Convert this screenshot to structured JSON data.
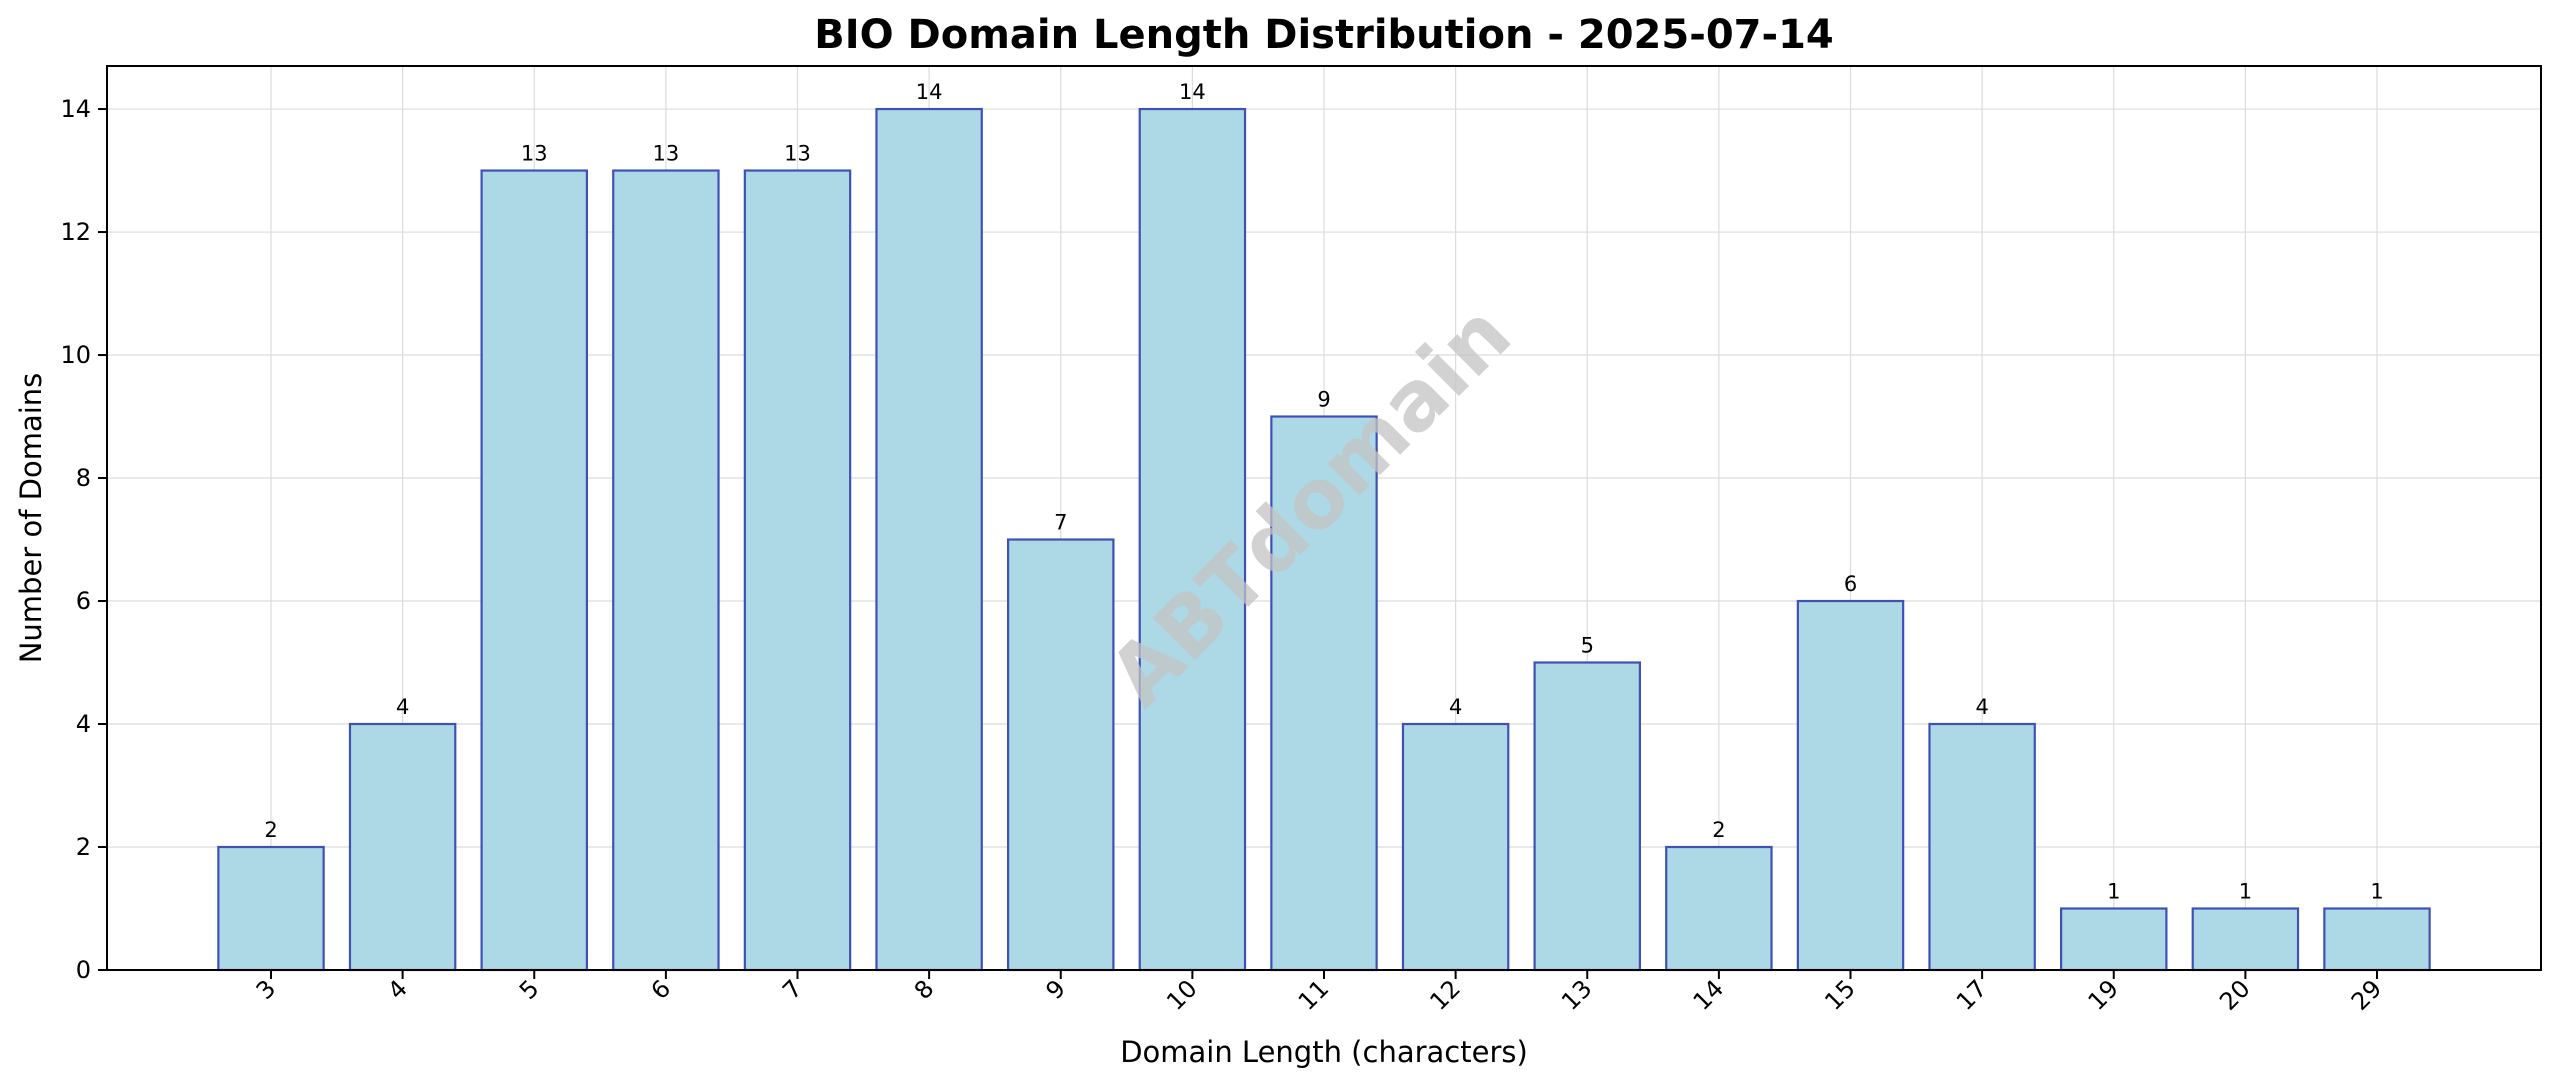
{
  "chart_data": {
    "type": "bar",
    "title": "BIO Domain Length Distribution - 2025-07-14",
    "xlabel": "Domain Length (characters)",
    "ylabel": "Number of Domains",
    "categories": [
      "3",
      "4",
      "5",
      "6",
      "7",
      "8",
      "9",
      "10",
      "11",
      "12",
      "13",
      "14",
      "15",
      "17",
      "19",
      "20",
      "29"
    ],
    "values": [
      2,
      4,
      13,
      13,
      13,
      14,
      7,
      14,
      9,
      4,
      5,
      2,
      6,
      4,
      1,
      1,
      1
    ],
    "ylim": [
      0,
      14.7
    ],
    "yticks": [
      0,
      2,
      4,
      6,
      8,
      10,
      12,
      14
    ],
    "grid": true,
    "bar_color": "#add8e6",
    "bar_edge_color": "#3f51b5",
    "watermark": "ABTdomain"
  }
}
